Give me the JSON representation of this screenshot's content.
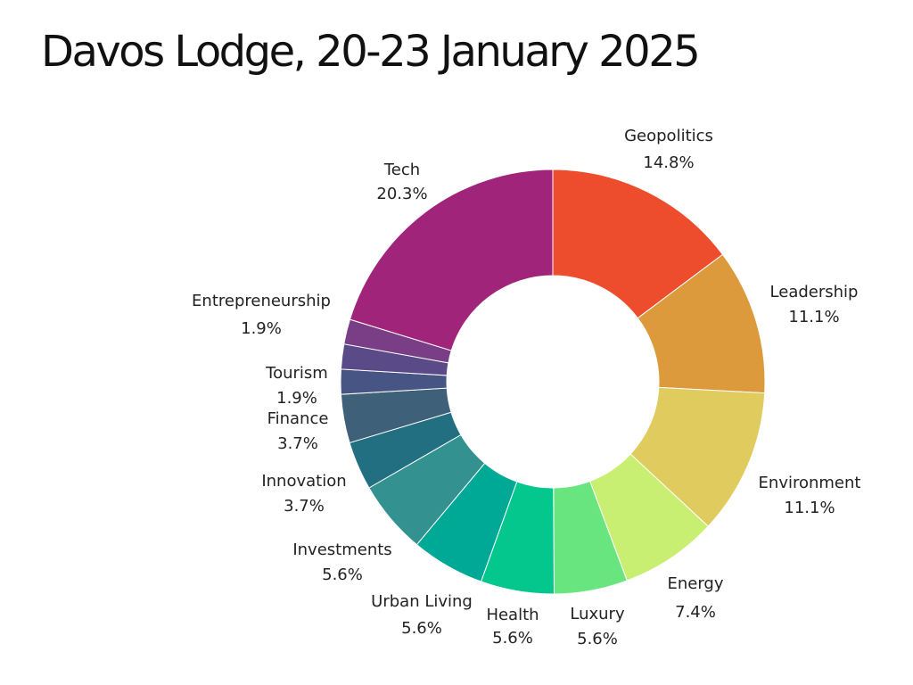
{
  "title": "Davos Lodge, 20-23 January 2025",
  "chart_data": {
    "type": "pie",
    "title": "Davos Lodge, 20-23 January 2025",
    "hole": 0.5,
    "direction": "clockwise",
    "start": "top",
    "slices": [
      {
        "label": "Geopolitics",
        "value": 14.8,
        "pct_label": "14.8%",
        "color": "#ee4d2d"
      },
      {
        "label": "Leadership",
        "value": 11.1,
        "pct_label": "11.1%",
        "color": "#dc9a3c"
      },
      {
        "label": "Environment",
        "value": 11.1,
        "pct_label": "11.1%",
        "color": "#dfcb5e"
      },
      {
        "label": "Energy",
        "value": 7.4,
        "pct_label": "7.4%",
        "color": "#c8ef72"
      },
      {
        "label": "Luxury",
        "value": 5.6,
        "pct_label": "5.6%",
        "color": "#69e57f"
      },
      {
        "label": "Health",
        "value": 5.6,
        "pct_label": "5.6%",
        "color": "#03c78c"
      },
      {
        "label": "Urban Living",
        "value": 5.6,
        "pct_label": "5.6%",
        "color": "#00a896"
      },
      {
        "label": "Investments",
        "value": 5.6,
        "pct_label": "5.6%",
        "color": "#339190"
      },
      {
        "label": "Innovation",
        "value": 3.7,
        "pct_label": "3.7%",
        "color": "#226f82"
      },
      {
        "label": "Finance",
        "value": 3.7,
        "pct_label": "3.7%",
        "color": "#3e6078"
      },
      {
        "label": "Tourism",
        "value": 1.9,
        "pct_label": "1.9%",
        "color": "#465583"
      },
      {
        "label": "Entrepreneurship",
        "value": 1.9,
        "pct_label": "1.9%",
        "color": "#5a4a87"
      },
      {
        "label": "",
        "value": 1.9,
        "pct_label": "",
        "color": "#793e86"
      },
      {
        "label": "Tech",
        "value": 20.3,
        "pct_label": "20.3%",
        "color": "#a1247b"
      }
    ]
  }
}
